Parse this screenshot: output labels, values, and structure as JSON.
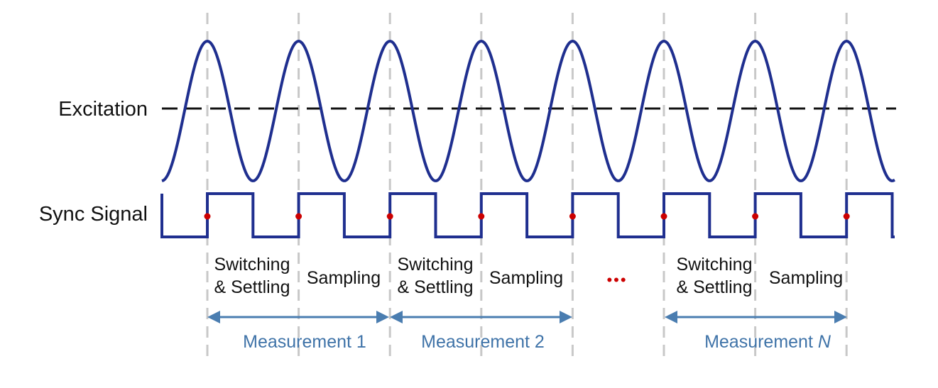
{
  "labels": {
    "excitation": "Excitation",
    "sync": "Sync Signal"
  },
  "phases": [
    {
      "line1": "Switching",
      "line2": "& Settling"
    },
    {
      "line1": "Sampling"
    },
    {
      "line1": "Switching",
      "line2": "& Settling"
    },
    {
      "line1": "Sampling"
    },
    {
      "line1": "Switching",
      "line2": "& Settling"
    },
    {
      "line1": "Sampling"
    }
  ],
  "ellipsis": "•••",
  "measurements": [
    {
      "text": "Measurement 1"
    },
    {
      "text": "Measurement 2"
    },
    {
      "text": "Measurement ",
      "italic": "N"
    }
  ],
  "colors": {
    "wave": "#1f2f8f",
    "dashed_axis": "#111111",
    "guide": "#c8c8c8",
    "edge_marker": "#cc0000",
    "arrow": "#4a7db0",
    "measurement_text": "#3f73a8"
  }
}
